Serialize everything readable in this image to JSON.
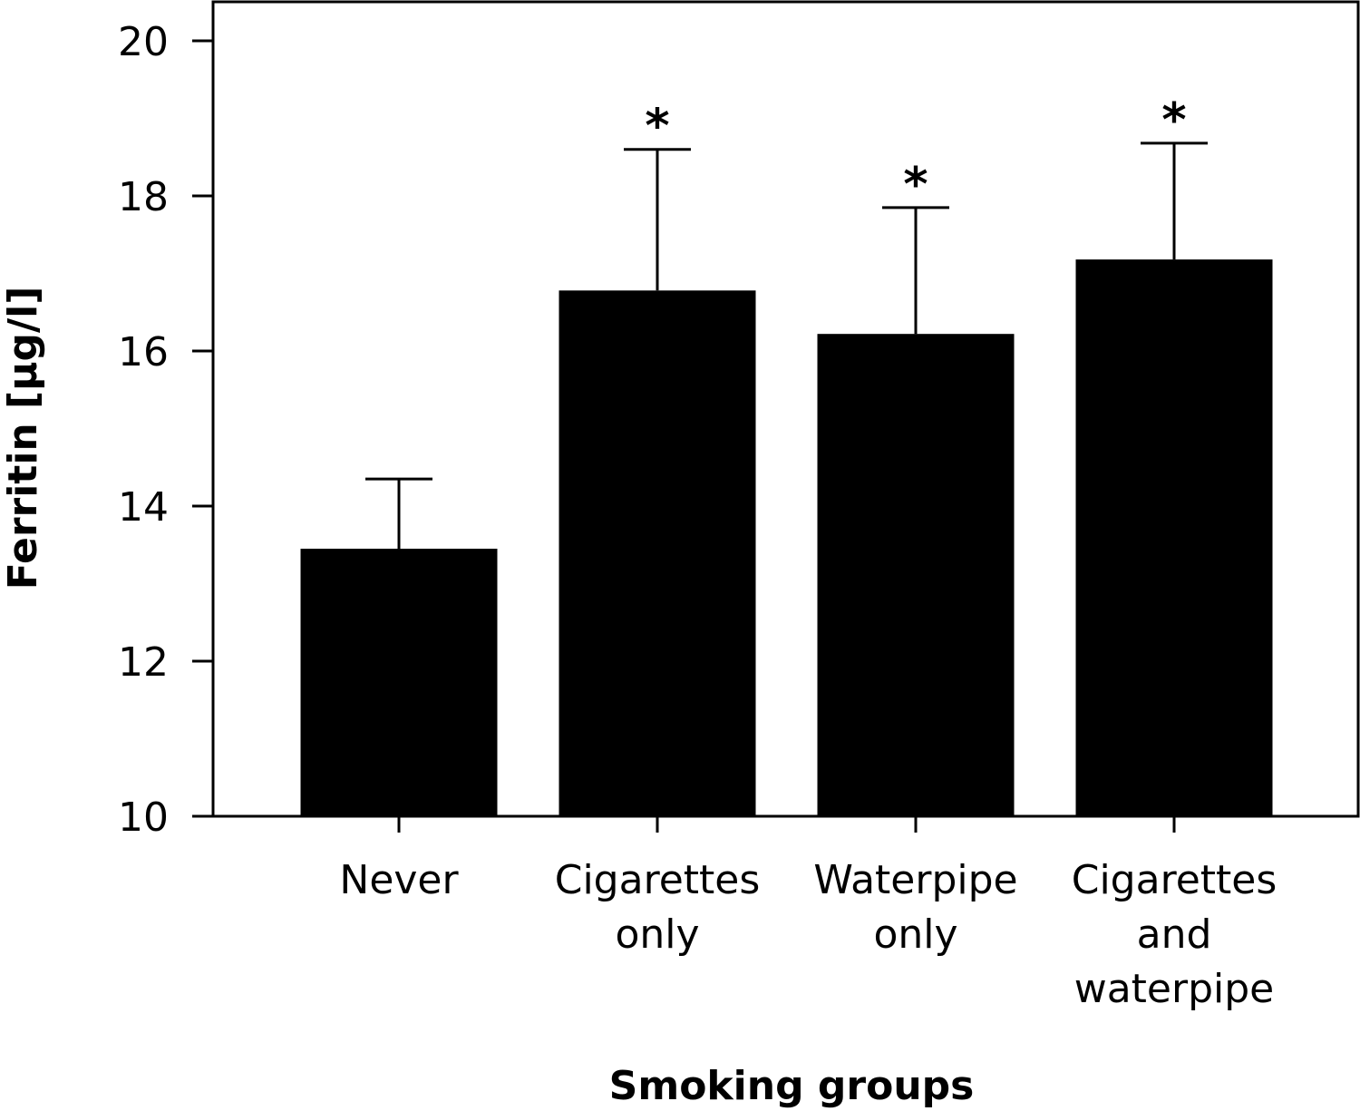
{
  "chart_data": {
    "type": "bar",
    "categories": [
      [
        "Never"
      ],
      [
        "Cigarettes",
        "only"
      ],
      [
        "Waterpipe",
        "only"
      ],
      [
        "Cigarettes",
        "and",
        "waterpipe"
      ]
    ],
    "values": [
      13.45,
      16.78,
      16.22,
      17.18
    ],
    "error_upper": [
      14.35,
      18.6,
      17.85,
      18.68
    ],
    "significance": [
      "",
      "*",
      "*",
      "*"
    ],
    "xlabel": "Smoking groups",
    "ylabel": "Ferritin [µg/l]",
    "ylim": [
      10,
      20
    ],
    "yticks": [
      "10",
      "12",
      "14",
      "16",
      "18",
      "20"
    ],
    "bar_color": "#000000",
    "grid": false,
    "legend": "none"
  }
}
